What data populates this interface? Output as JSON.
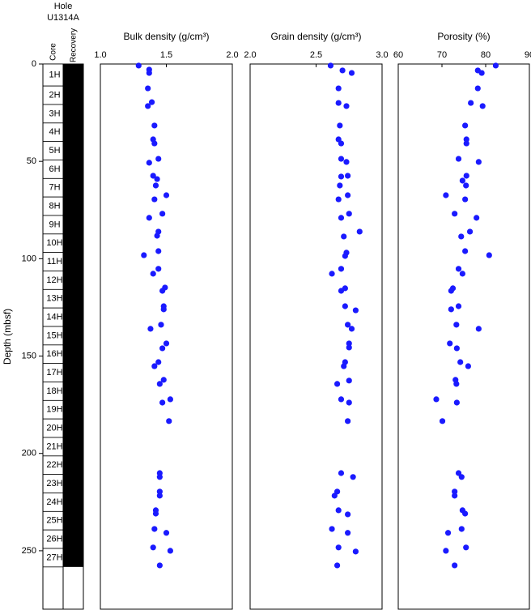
{
  "core_log": {
    "hole_label": "Hole",
    "hole": "U1314A",
    "column_headers": [
      "Core",
      "Recovery"
    ],
    "cores": {
      "labels": [
        "1H",
        "2H",
        "3H",
        "4H",
        "5H",
        "6H",
        "7H",
        "8H",
        "9H",
        "10H",
        "11H",
        "12H",
        "13H",
        "14H",
        "15H",
        "16H",
        "17H",
        "18H",
        "19H",
        "20H",
        "21H",
        "22H",
        "23H",
        "24H",
        "25H",
        "26H",
        "27H"
      ],
      "top": [
        0,
        11.3,
        20.8,
        30.3,
        39.8,
        49.3,
        58.8,
        68.3,
        77.8,
        87.3,
        96.8,
        106.3,
        115.8,
        125.3,
        134.8,
        144.3,
        153.8,
        163.3,
        172.8,
        182.3,
        191.8,
        201.3,
        210.8,
        220.3,
        229.8,
        239.3,
        248.8
      ],
      "bottom": [
        11.3,
        20.8,
        30.3,
        39.8,
        49.3,
        58.8,
        68.3,
        77.8,
        87.3,
        96.8,
        106.3,
        115.8,
        125.3,
        134.8,
        144.3,
        153.8,
        163.3,
        172.8,
        182.3,
        191.8,
        201.3,
        210.8,
        220.3,
        229.8,
        239.3,
        248.8,
        258.3
      ]
    },
    "recovery": {
      "top": [
        0
      ],
      "bottom": [
        258.3
      ]
    }
  },
  "chart_data": [
    {
      "type": "scatter",
      "title": "Bulk density (g/cm³)",
      "ylabel": "Depth (mbsf)",
      "xlim": [
        1.0,
        2.0
      ],
      "xticks": [
        {
          "value": 1.0,
          "label": "1.0"
        },
        1.5,
        {
          "value": 2.0,
          "label": "2.0"
        }
      ],
      "ylim": [
        0,
        280
      ],
      "yticks": [
        0,
        50,
        100,
        150,
        200,
        250
      ],
      "series": [
        {
          "color": "#1a1aff",
          "x": [
            1.29,
            1.37,
            1.37,
            1.36,
            1.39,
            1.36,
            1.41,
            1.4,
            1.41,
            1.44,
            1.37,
            1.4,
            1.43,
            1.42,
            1.5,
            1.41,
            1.47,
            1.37,
            1.44,
            1.43,
            1.44,
            1.33,
            1.4,
            1.44,
            1.49,
            1.47,
            1.48,
            1.48,
            1.46,
            1.38,
            1.5,
            1.47,
            1.44,
            1.41,
            1.48,
            1.45,
            1.53,
            1.47,
            1.52,
            1.45,
            1.45,
            1.45,
            1.45,
            1.42,
            1.42,
            1.41,
            1.5,
            1.4,
            1.53,
            1.45
          ],
          "y": [
            0.8,
            2.9,
            4.6,
            12.5,
            19.6,
            21.6,
            31.6,
            38.7,
            40.8,
            48.7,
            50.7,
            57.4,
            59.1,
            62.4,
            67.4,
            69.5,
            76.9,
            79.0,
            86.1,
            88.2,
            96.1,
            98.2,
            107.7,
            105.2,
            114.8,
            116.5,
            124.4,
            126.0,
            133.9,
            136.0,
            143.5,
            146.0,
            153.1,
            155.2,
            162.2,
            164.3,
            172.2,
            173.9,
            183.4,
            210.1,
            212.1,
            219.6,
            221.7,
            229.2,
            230.9,
            238.8,
            240.8,
            248.3,
            250.0,
            257.5
          ]
        }
      ]
    },
    {
      "type": "scatter",
      "title": "Grain density (g/cm³)",
      "xlim": [
        2.0,
        3.0
      ],
      "xticks": [
        {
          "value": 2.0,
          "label": "2.0"
        },
        2.5,
        {
          "value": 3.0,
          "label": "3.0"
        }
      ],
      "ylim": [
        0,
        280
      ],
      "series": [
        {
          "color": "#1a1aff",
          "x": [
            2.61,
            2.7,
            2.77,
            2.67,
            2.67,
            2.73,
            2.68,
            2.67,
            2.69,
            2.69,
            2.73,
            2.69,
            2.74,
            2.68,
            2.74,
            2.67,
            2.75,
            2.69,
            2.83,
            2.71,
            2.73,
            2.72,
            2.69,
            2.62,
            2.72,
            2.69,
            2.72,
            2.8,
            2.74,
            2.77,
            2.75,
            2.75,
            2.72,
            2.71,
            2.75,
            2.66,
            2.69,
            2.75,
            2.74,
            2.69,
            2.78,
            2.66,
            2.64,
            2.67,
            2.74,
            2.62,
            2.74,
            2.67,
            2.8,
            2.66
          ],
          "y": [
            0.8,
            3.3,
            4.6,
            12.5,
            20.0,
            21.6,
            31.6,
            38.7,
            40.8,
            48.7,
            50.3,
            57.8,
            57.4,
            62.4,
            67.4,
            69.5,
            76.9,
            79.0,
            86.1,
            88.6,
            96.9,
            98.6,
            105.2,
            107.7,
            115.2,
            116.5,
            124.4,
            126.5,
            133.9,
            136.0,
            143.5,
            145.6,
            153.1,
            155.2,
            162.6,
            164.3,
            172.2,
            173.9,
            183.4,
            210.1,
            212.1,
            219.6,
            221.7,
            229.2,
            231.3,
            238.8,
            240.8,
            248.3,
            250.4,
            257.5
          ]
        }
      ]
    },
    {
      "type": "scatter",
      "title": "Porosity (%)",
      "xlim": [
        60,
        90
      ],
      "xticks": [
        60,
        70,
        80,
        90
      ],
      "ylim": [
        0,
        280
      ],
      "series": [
        {
          "color": "#1a1aff",
          "x": [
            82.3,
            78.2,
            79.1,
            78.2,
            76.6,
            79.3,
            75.3,
            75.6,
            75.6,
            73.8,
            78.4,
            75.6,
            74.7,
            75.5,
            70.9,
            75.3,
            72.9,
            77.9,
            76.4,
            74.4,
            75.3,
            80.8,
            73.8,
            74.7,
            72.5,
            72.1,
            73.8,
            72.1,
            73.3,
            78.4,
            71.8,
            73.4,
            74.2,
            76.0,
            73.1,
            73.3,
            68.7,
            73.4,
            70.1,
            73.8,
            74.5,
            72.9,
            72.9,
            74.7,
            75.3,
            74.5,
            71.4,
            75.5,
            70.9,
            72.9
          ],
          "y": [
            0.8,
            3.3,
            4.6,
            12.5,
            20.0,
            21.6,
            31.6,
            38.7,
            40.8,
            48.7,
            50.3,
            57.4,
            59.9,
            62.4,
            67.4,
            69.5,
            76.9,
            79.0,
            86.1,
            88.6,
            96.1,
            98.2,
            105.2,
            107.7,
            115.2,
            116.5,
            124.4,
            126.0,
            133.9,
            136.0,
            143.5,
            146.0,
            153.1,
            155.2,
            162.2,
            164.3,
            172.2,
            173.9,
            183.4,
            210.1,
            212.1,
            219.6,
            221.7,
            229.2,
            230.9,
            238.8,
            240.8,
            248.3,
            250.0,
            257.5
          ]
        }
      ]
    }
  ]
}
